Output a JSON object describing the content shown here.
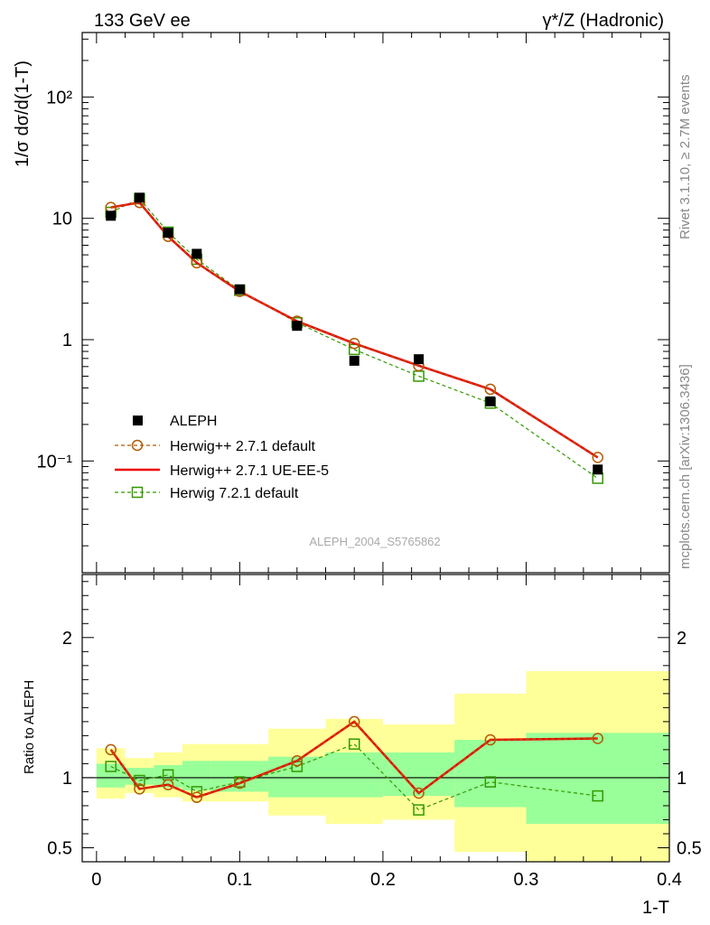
{
  "header": {
    "left": "133 GeV ee",
    "right": "γ*/Z (Hadronic)"
  },
  "side_labels": {
    "rivet": "Rivet 3.1.10, ≥ 2.7M events",
    "mcplots": "mcplots.cern.ch [arXiv:1306.3436]"
  },
  "analysis_id": "ALEPH_2004_S5765862",
  "legend": {
    "aleph": "ALEPH",
    "herwig_default": "Herwig++ 2.7.1 default",
    "herwig_ue": "Herwig++ 2.7.1 UE-EE-5",
    "herwig7": "Herwig 7.2.1 default"
  },
  "colors": {
    "data": "#000000",
    "herwig_default": "#b35900",
    "herwig_ue": "#ee0000",
    "herwig7": "#339900",
    "band_inner": "#99ff99",
    "band_outer": "#ffff99"
  },
  "chart_data": [
    {
      "type": "line",
      "panel": "main",
      "ylabel": "1/σ  dσ/d(1-T)",
      "xlim": [
        -0.01,
        0.4
      ],
      "ylim": [
        0.012,
        340
      ],
      "yscale": "log",
      "y_tick_labels": [
        "10⁻¹",
        "1",
        "10",
        "10²"
      ],
      "x": [
        0.01,
        0.03,
        0.05,
        0.07,
        0.1,
        0.14,
        0.18,
        0.225,
        0.275,
        0.35
      ],
      "series": [
        {
          "name": "ALEPH",
          "style": "markers",
          "values": [
            10.5,
            14.8,
            7.6,
            5.1,
            2.6,
            1.3,
            0.67,
            0.69,
            0.31,
            0.085
          ]
        },
        {
          "name": "Herwig++ 2.7.1 default",
          "style": "dashed-circle",
          "values": [
            12.3,
            13.5,
            7.1,
            4.3,
            2.5,
            1.42,
            0.93,
            0.61,
            0.39,
            0.107
          ]
        },
        {
          "name": "Herwig++ 2.7.1 UE-EE-5",
          "style": "solid",
          "values": [
            12.3,
            13.5,
            7.1,
            4.3,
            2.5,
            1.42,
            0.93,
            0.61,
            0.39,
            0.107
          ]
        },
        {
          "name": "Herwig 7.2.1 default",
          "style": "dashed-square",
          "values": [
            11.2,
            14.5,
            7.7,
            4.6,
            2.55,
            1.38,
            0.83,
            0.5,
            0.3,
            0.072
          ]
        }
      ]
    },
    {
      "type": "line",
      "panel": "ratio",
      "ylabel": "Ratio to ALEPH",
      "xlabel": "1-T",
      "xlim": [
        -0.01,
        0.4
      ],
      "ylim": [
        0.4,
        2.45
      ],
      "x_ticks": [
        0,
        0.1,
        0.2,
        0.3,
        0.4
      ],
      "x_tick_labels": [
        "0",
        "0.1",
        "0.2",
        "0.3",
        "0.4"
      ],
      "y_ticks": [
        0.5,
        1,
        2
      ],
      "y_tick_labels": [
        "0.5",
        "1",
        "2"
      ],
      "x": [
        0.01,
        0.03,
        0.05,
        0.07,
        0.1,
        0.14,
        0.18,
        0.225,
        0.275,
        0.35
      ],
      "bins": [
        [
          0.0,
          0.02
        ],
        [
          0.02,
          0.04
        ],
        [
          0.04,
          0.06
        ],
        [
          0.06,
          0.08
        ],
        [
          0.08,
          0.12
        ],
        [
          0.12,
          0.16
        ],
        [
          0.16,
          0.2
        ],
        [
          0.2,
          0.25
        ],
        [
          0.25,
          0.3
        ],
        [
          0.3,
          0.4
        ]
      ],
      "band_inner": [
        [
          0.93,
          1.1
        ],
        [
          0.95,
          1.07
        ],
        [
          0.93,
          1.09
        ],
        [
          0.91,
          1.12
        ],
        [
          0.9,
          1.12
        ],
        [
          0.86,
          1.15
        ],
        [
          0.86,
          1.18
        ],
        [
          0.87,
          1.18
        ],
        [
          0.79,
          1.27
        ],
        [
          0.67,
          1.32
        ]
      ],
      "band_outer": [
        [
          0.85,
          1.21
        ],
        [
          0.89,
          1.14
        ],
        [
          0.86,
          1.18
        ],
        [
          0.83,
          1.24
        ],
        [
          0.83,
          1.24
        ],
        [
          0.73,
          1.35
        ],
        [
          0.67,
          1.42
        ],
        [
          0.7,
          1.38
        ],
        [
          0.47,
          1.6
        ],
        [
          0.38,
          1.76
        ]
      ],
      "series": [
        {
          "name": "Herwig++ 2.7.1 default",
          "style": "dashed-circle",
          "values": [
            1.2,
            0.92,
            0.95,
            0.86,
            0.96,
            1.12,
            1.4,
            0.89,
            1.27,
            1.28
          ]
        },
        {
          "name": "Herwig++ 2.7.1 UE-EE-5",
          "style": "solid",
          "values": [
            1.2,
            0.92,
            0.95,
            0.86,
            0.96,
            1.12,
            1.4,
            0.89,
            1.27,
            1.28
          ]
        },
        {
          "name": "Herwig 7.2.1 default",
          "style": "dashed-square",
          "values": [
            1.08,
            0.98,
            1.02,
            0.9,
            0.97,
            1.08,
            1.24,
            0.77,
            0.97,
            0.87
          ]
        }
      ]
    }
  ]
}
